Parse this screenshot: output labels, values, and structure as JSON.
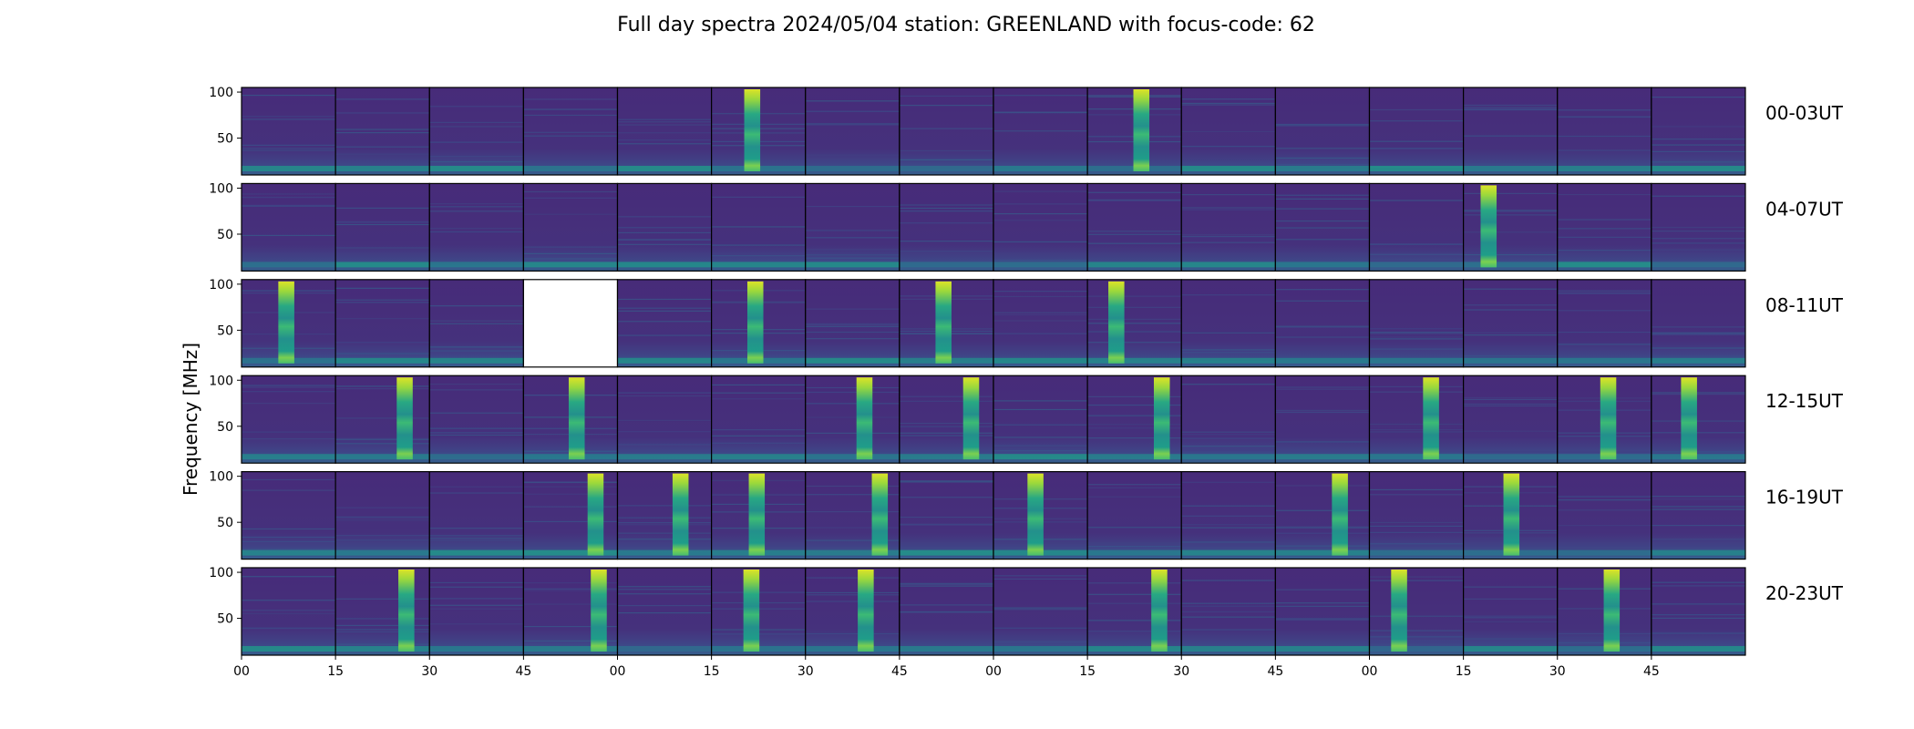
{
  "chart_data": {
    "type": "heatmap",
    "title": "Full day spectra 2024/05/04 station: GREENLAND with focus-code: 62",
    "ylabel": "Frequency [MHz]",
    "xlabel": "",
    "ylim": [
      10,
      105
    ],
    "yticks": [
      50,
      100
    ],
    "yticks_labels": [
      "50",
      "100"
    ],
    "xtick_labels": [
      "00",
      "15",
      "30",
      "45",
      "00",
      "15",
      "30",
      "45",
      "00",
      "15",
      "30",
      "45",
      "00",
      "15",
      "30",
      "45"
    ],
    "colormap": "viridis",
    "panels_per_row": 16,
    "rows": [
      {
        "label": "00-03UT",
        "burst_panels": [
          5,
          9
        ],
        "missing_panels": []
      },
      {
        "label": "04-07UT",
        "burst_panels": [
          13
        ],
        "missing_panels": []
      },
      {
        "label": "08-11UT",
        "burst_panels": [
          0,
          5,
          7,
          9
        ],
        "missing_panels": [
          3
        ]
      },
      {
        "label": "12-15UT",
        "burst_panels": [
          1,
          3,
          6,
          7,
          9,
          12,
          14,
          15
        ],
        "missing_panels": []
      },
      {
        "label": "16-19UT",
        "burst_panels": [
          3,
          4,
          5,
          6,
          8,
          11,
          13
        ],
        "missing_panels": []
      },
      {
        "label": "20-23UT",
        "burst_panels": [
          1,
          3,
          5,
          6,
          9,
          12,
          14
        ],
        "missing_panels": []
      }
    ]
  }
}
